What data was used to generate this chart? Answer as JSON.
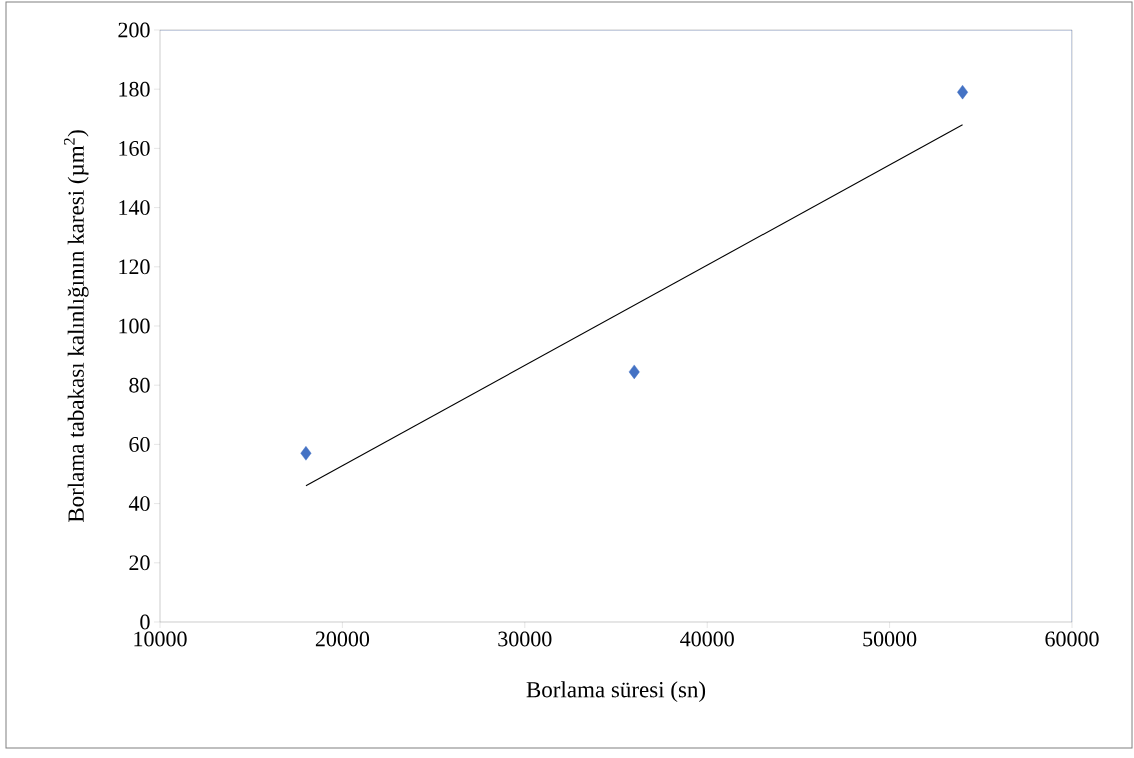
{
  "chart_data": {
    "type": "scatter",
    "xlabel": "Borlama süresi (sn)",
    "ylabel": "Borlama tabakası kalınlığının karesi (µm$^{2}$)",
    "xlim": [
      10000,
      60000
    ],
    "ylim": [
      0,
      200
    ],
    "xticks": [
      10000,
      20000,
      30000,
      40000,
      50000,
      60000
    ],
    "yticks": [
      0,
      20,
      40,
      60,
      80,
      100,
      120,
      140,
      160,
      180,
      200
    ],
    "marker": "diamond",
    "series": [
      {
        "color": "#4472c4",
        "x": [
          18000,
          36000,
          54000
        ],
        "values": [
          57,
          84.5,
          179
        ]
      },
      {
        "type": "line",
        "color": "#000000",
        "x": [
          18000,
          54000
        ],
        "values": [
          46,
          168
        ],
        "marker": "none",
        "line_style": "solid"
      }
    ]
  }
}
